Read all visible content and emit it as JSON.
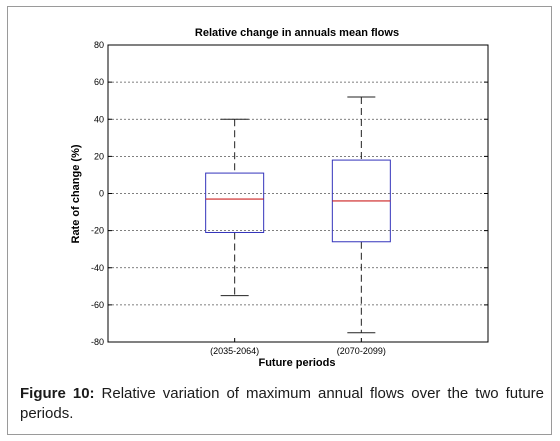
{
  "chart_data": {
    "type": "box",
    "title": "Relative change in annuals mean flows",
    "xlabel": "Future periods",
    "ylabel": "Rate of change (%)",
    "ylim": [
      -80,
      80
    ],
    "yticks": [
      80,
      60,
      40,
      20,
      0,
      -20,
      -40,
      -60,
      -80
    ],
    "grid": "horizontal dashed",
    "colors": {
      "box": "#3333bb",
      "median": "#cc2222",
      "whisker": "#222222",
      "grid": "#555555"
    },
    "series": [
      {
        "category": "(2035-2064)",
        "whisker_low": -55,
        "q1": -21,
        "median": -3,
        "q3": 11,
        "whisker_high": 40
      },
      {
        "category": "(2070-2099)",
        "whisker_low": -75,
        "q1": -26,
        "median": -4,
        "q3": 18,
        "whisker_high": 52
      }
    ]
  },
  "caption": {
    "label": "Figure 10:",
    "text": " Relative variation of maximum annual flows over the two future periods."
  }
}
